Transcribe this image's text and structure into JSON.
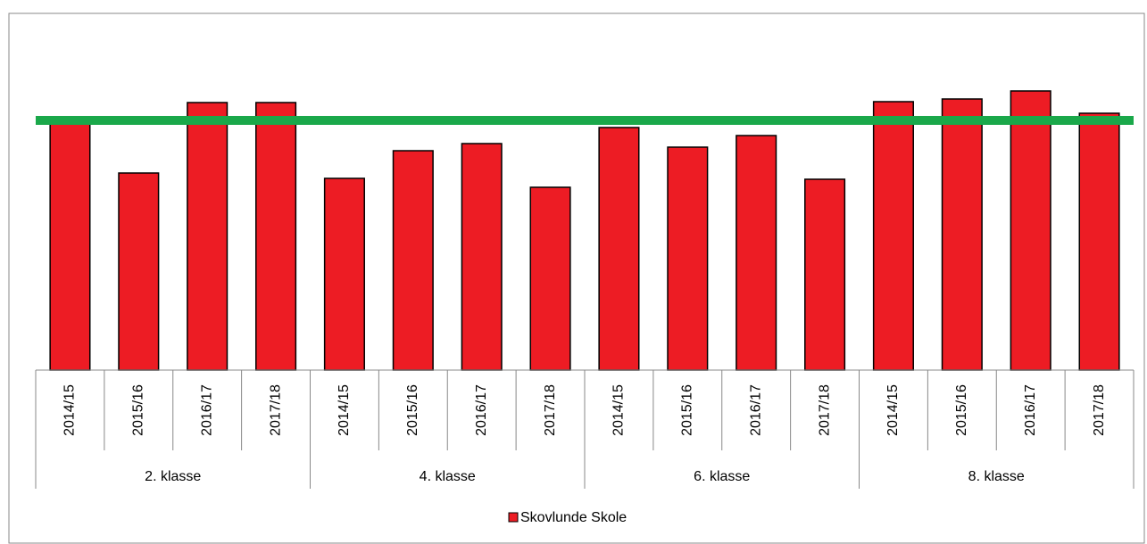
{
  "chart_data": {
    "type": "bar",
    "categories": [
      "2014/15",
      "2015/16",
      "2016/17",
      "2017/18",
      "2014/15",
      "2015/16",
      "2016/17",
      "2017/18",
      "2014/15",
      "2015/16",
      "2016/17",
      "2017/18",
      "2014/15",
      "2015/16",
      "2016/17",
      "2017/18"
    ],
    "groups": [
      "2. klasse",
      "4. klasse",
      "6. klasse",
      "8. klasse"
    ],
    "series": [
      {
        "name": "Skovlunde Skole",
        "color": "#ed1c24",
        "values": [
          278,
          221,
          300,
          300,
          215,
          246,
          254,
          205,
          272,
          250,
          263,
          214,
          301,
          304,
          313,
          288
        ]
      }
    ],
    "reference_line": {
      "value": 280,
      "color": "#1aa84a"
    },
    "ylim": [
      0,
      400
    ]
  }
}
